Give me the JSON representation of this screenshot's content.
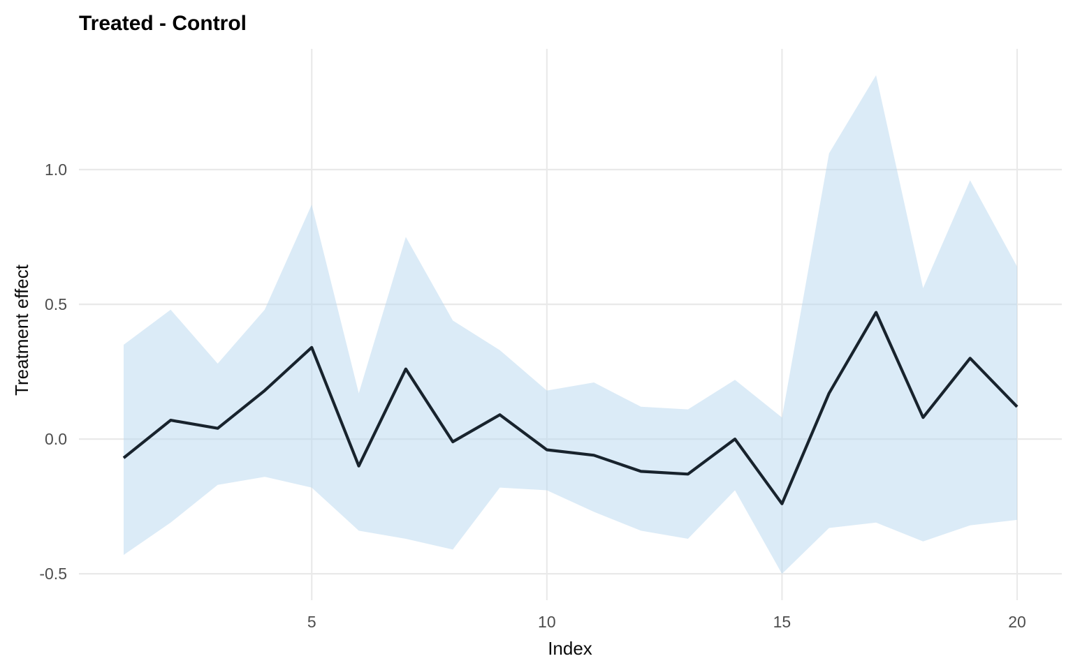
{
  "colors": {
    "background": "#ffffff",
    "line": "#18232d",
    "ribbon": "#b7d7f0",
    "ribbon_opacity": 0.5,
    "grid": "#e9e9e9",
    "tick_text": "#4d4d4d",
    "title_text": "#000000",
    "axis_title_text": "#0a0a0a"
  },
  "chart_data": {
    "type": "line",
    "title": "Treated - Control",
    "xlabel": "Index",
    "ylabel": "Treatment effect",
    "x": [
      1,
      2,
      3,
      4,
      5,
      6,
      7,
      8,
      9,
      10,
      11,
      12,
      13,
      14,
      15,
      16,
      17,
      18,
      19,
      20
    ],
    "series": [
      {
        "name": "treatment_effect",
        "values": [
          -0.07,
          0.07,
          0.04,
          0.18,
          0.34,
          -0.1,
          0.26,
          -0.01,
          0.09,
          -0.04,
          -0.06,
          -0.12,
          -0.13,
          0.0,
          -0.24,
          0.17,
          0.47,
          0.08,
          0.3,
          0.12
        ]
      },
      {
        "name": "ci_upper",
        "values": [
          0.35,
          0.48,
          0.28,
          0.48,
          0.87,
          0.17,
          0.75,
          0.44,
          0.33,
          0.18,
          0.21,
          0.12,
          0.11,
          0.22,
          0.08,
          1.06,
          1.35,
          0.56,
          0.96,
          0.64
        ]
      },
      {
        "name": "ci_lower",
        "values": [
          -0.43,
          -0.31,
          -0.17,
          -0.14,
          -0.18,
          -0.34,
          -0.37,
          -0.41,
          -0.18,
          -0.19,
          -0.27,
          -0.34,
          -0.37,
          -0.19,
          -0.5,
          -0.33,
          -0.31,
          -0.38,
          -0.32,
          -0.3
        ]
      }
    ],
    "x_ticks": [
      5,
      10,
      15,
      20
    ],
    "x_tick_labels": [
      "5",
      "10",
      "15",
      "20"
    ],
    "y_ticks": [
      -0.5,
      0.0,
      0.5,
      1.0
    ],
    "y_tick_labels": [
      "-0.5",
      "0.0",
      "0.5",
      "1.0"
    ],
    "xlim": [
      0.05,
      20.95
    ],
    "ylim": [
      -0.598,
      1.448
    ],
    "grid": "major-only",
    "legend": "none",
    "ribbon_series": "ci_upper/ci_lower around treatment_effect"
  }
}
